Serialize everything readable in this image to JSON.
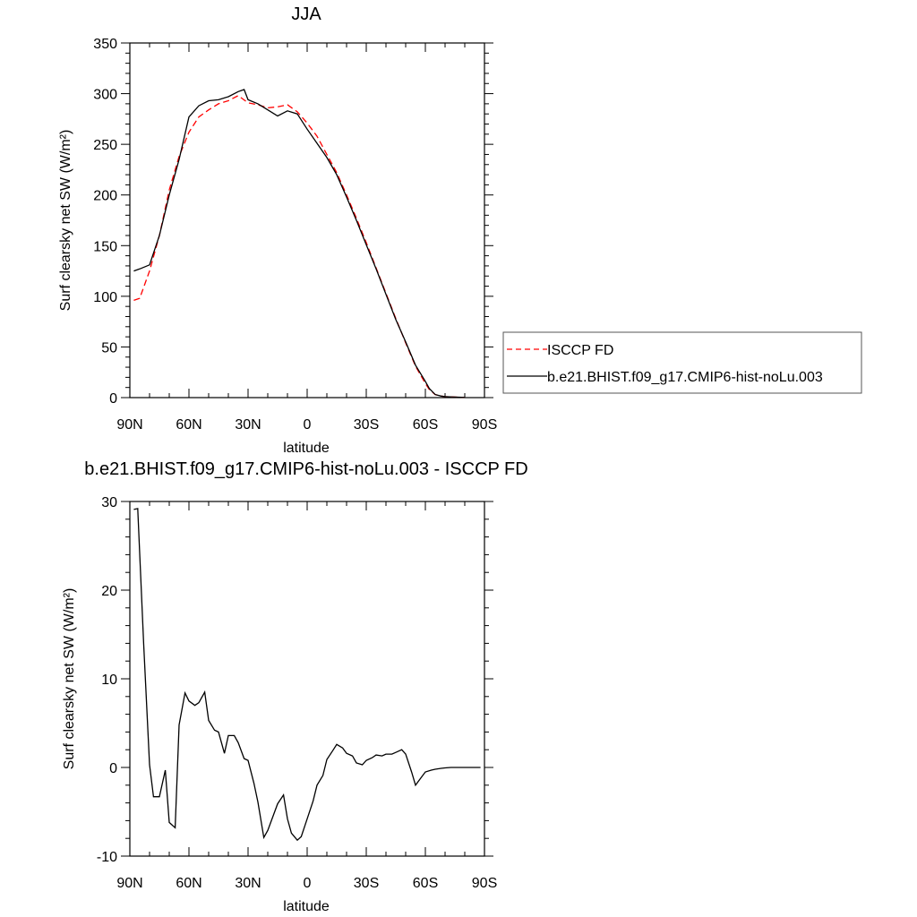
{
  "chart_data": [
    {
      "type": "line",
      "title": "JJA",
      "xlabel": "latitude",
      "ylabel": "Surf clearsky net SW (W/m²)",
      "xlim": [
        90,
        -90
      ],
      "ylim": [
        0,
        350
      ],
      "xticks": [
        {
          "value": 90,
          "label": "90N"
        },
        {
          "value": 60,
          "label": "60N"
        },
        {
          "value": 30,
          "label": "30N"
        },
        {
          "value": 0,
          "label": "0"
        },
        {
          "value": -30,
          "label": "30S"
        },
        {
          "value": -60,
          "label": "60S"
        },
        {
          "value": -90,
          "label": "90S"
        }
      ],
      "yticks": [
        {
          "value": 0,
          "label": "0"
        },
        {
          "value": 50,
          "label": "50"
        },
        {
          "value": 100,
          "label": "100"
        },
        {
          "value": 150,
          "label": "150"
        },
        {
          "value": 200,
          "label": "200"
        },
        {
          "value": 250,
          "label": "250"
        },
        {
          "value": 300,
          "label": "300"
        },
        {
          "value": 350,
          "label": "350"
        }
      ],
      "legend": "outside-right",
      "series": [
        {
          "name": "ISCCP FD",
          "color": "#ff0000",
          "dash": "dashed",
          "x": [
            88,
            85,
            80,
            75,
            70,
            65,
            60,
            55,
            50,
            45,
            40,
            35,
            30,
            25,
            20,
            15,
            10,
            5,
            0,
            -5,
            -10,
            -15,
            -20,
            -25,
            -30,
            -35,
            -40,
            -45,
            -50,
            -55,
            -60,
            -62,
            -65,
            -68,
            -70,
            -75,
            -80
          ],
          "y": [
            96,
            98,
            125,
            160,
            205,
            238,
            262,
            277,
            284,
            290,
            293,
            298,
            291,
            289,
            286,
            287,
            289,
            282,
            271,
            258,
            240,
            222,
            200,
            177,
            153,
            128,
            103,
            78,
            54,
            31,
            14,
            8,
            3,
            1.5,
            1,
            0.5,
            0.2
          ]
        },
        {
          "name": "b.e21.BHIST.f09_g17.CMIP6-hist-noLu.003",
          "color": "#000000",
          "dash": "solid",
          "x": [
            88,
            85,
            80,
            75,
            70,
            65,
            60,
            55,
            50,
            45,
            40,
            35,
            32,
            30,
            25,
            20,
            15,
            10,
            5,
            0,
            -5,
            -10,
            -15,
            -20,
            -25,
            -30,
            -35,
            -40,
            -45,
            -50,
            -55,
            -60,
            -62,
            -65,
            -68,
            -70,
            -75,
            -80
          ],
          "y": [
            125,
            127,
            131,
            160,
            200,
            235,
            277,
            288,
            293,
            294,
            297,
            302,
            304,
            294,
            290,
            284,
            278,
            283,
            280,
            265,
            251,
            237,
            220,
            198,
            175,
            151,
            127,
            102,
            77,
            55,
            32,
            16,
            9,
            3,
            1.5,
            1,
            0.5,
            0.2
          ]
        }
      ]
    },
    {
      "type": "line",
      "title": "b.e21.BHIST.f09_g17.CMIP6-hist-noLu.003 - ISCCP FD",
      "xlabel": "latitude",
      "ylabel": "Surf clearsky net SW (W/m²)",
      "xlim": [
        90,
        -90
      ],
      "ylim": [
        -10,
        30
      ],
      "xticks": [
        {
          "value": 90,
          "label": "90N"
        },
        {
          "value": 60,
          "label": "60N"
        },
        {
          "value": 30,
          "label": "30N"
        },
        {
          "value": 0,
          "label": "0"
        },
        {
          "value": -30,
          "label": "30S"
        },
        {
          "value": -60,
          "label": "60S"
        },
        {
          "value": -90,
          "label": "90S"
        }
      ],
      "yticks": [
        {
          "value": -10,
          "label": "-10"
        },
        {
          "value": 0,
          "label": "0"
        },
        {
          "value": 10,
          "label": "10"
        },
        {
          "value": 20,
          "label": "20"
        },
        {
          "value": 30,
          "label": "30"
        }
      ],
      "series": [
        {
          "color": "#000000",
          "dash": "solid",
          "x": [
            88,
            86,
            83,
            80,
            78,
            75,
            72,
            70,
            67,
            65,
            62,
            60,
            57,
            55,
            52,
            50,
            47,
            45,
            42,
            40,
            37,
            35,
            32,
            30,
            27,
            25,
            22,
            20,
            17,
            15,
            12,
            10,
            8,
            5,
            3,
            0,
            -3,
            -5,
            -8,
            -10,
            -13,
            -15,
            -18,
            -20,
            -23,
            -25,
            -28,
            -30,
            -33,
            -35,
            -38,
            -40,
            -43,
            -45,
            -48,
            -50,
            -53,
            -55,
            -58,
            -60,
            -63,
            -65,
            -68,
            -70,
            -73,
            -75,
            -78,
            -80,
            -85,
            -88
          ],
          "y": [
            29.1,
            29.2,
            14,
            0.3,
            -3.3,
            -3.3,
            -0.3,
            -6.2,
            -6.8,
            4.8,
            8.4,
            7.5,
            7.0,
            7.3,
            8.5,
            5.3,
            4.2,
            4.0,
            1.6,
            3.6,
            3.6,
            2.8,
            1.0,
            0.8,
            -1.8,
            -3.9,
            -7.9,
            -7.1,
            -5.3,
            -4.1,
            -3.1,
            -5.8,
            -7.4,
            -8.2,
            -7.8,
            -5.8,
            -3.8,
            -2.0,
            -0.9,
            0.9,
            1.9,
            2.6,
            2.2,
            1.6,
            1.3,
            0.5,
            0.3,
            0.8,
            1.1,
            1.4,
            1.3,
            1.5,
            1.5,
            1.7,
            2.0,
            1.5,
            -0.5,
            -2.0,
            -1.1,
            -0.5,
            -0.3,
            -0.2,
            -0.1,
            -0.05,
            0,
            0,
            0,
            0,
            0,
            0
          ]
        }
      ]
    }
  ]
}
